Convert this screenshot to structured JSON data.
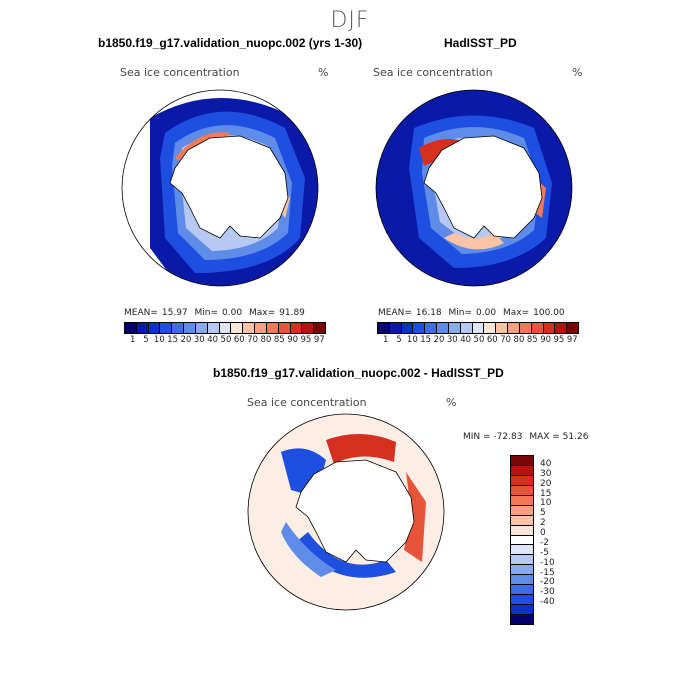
{
  "season": "DJF",
  "panel_left": {
    "title": "b1850.f19_g17.validation_nuopc.002 (yrs 1-30)",
    "variable": "Sea ice concentration",
    "units": "%",
    "mean_label": "MEAN=",
    "mean_value": "15.97",
    "min_label": "Min=",
    "min_value": "0.00",
    "max_label": "Max=",
    "max_value": "91.89"
  },
  "panel_right": {
    "title": "HadISST_PD",
    "variable": "Sea ice concentration",
    "units": "%",
    "mean_label": "MEAN=",
    "mean_value": "16.18",
    "min_label": "Min=",
    "min_value": "0.00",
    "max_label": "Max=",
    "max_value": "100.00"
  },
  "abs_colorbar": {
    "ticks": [
      "1",
      "5",
      "10",
      "15",
      "20",
      "30",
      "40",
      "50",
      "60",
      "70",
      "80",
      "85",
      "90",
      "95",
      "97"
    ],
    "colors": [
      "#08006e",
      "#0a1aa8",
      "#0a32c8",
      "#1e4fe0",
      "#3c6ee6",
      "#5f8ce8",
      "#8aaaee",
      "#b7c9f2",
      "#dde6f8",
      "#fbe4d8",
      "#f9c3a6",
      "#f5a07e",
      "#f07a58",
      "#e8543a",
      "#d5301f",
      "#b01510",
      "#7a0505"
    ]
  },
  "panel_diff": {
    "title": "b1850.f19_g17.validation_nuopc.002 - HadISST_PD",
    "variable": "Sea ice concentration",
    "units": "%",
    "min_text": "MIN = -72.83",
    "max_text": "MAX =  51.26"
  },
  "diff_colorbar": {
    "labels": [
      "40",
      "30",
      "20",
      "15",
      "10",
      "5",
      "2",
      "0",
      "-2",
      "-5",
      "-10",
      "-15",
      "-20",
      "-30",
      "-40"
    ],
    "colors": [
      "#7a0505",
      "#b01510",
      "#d5301f",
      "#e8543a",
      "#f07a58",
      "#f5a07e",
      "#f9c3a6",
      "#fbe4d8",
      "#ffffff",
      "#dde6f8",
      "#b7c9f2",
      "#8aaaee",
      "#5f8ce8",
      "#3c6ee6",
      "#1e4fe0",
      "#0a32c8",
      "#08006e"
    ]
  }
}
